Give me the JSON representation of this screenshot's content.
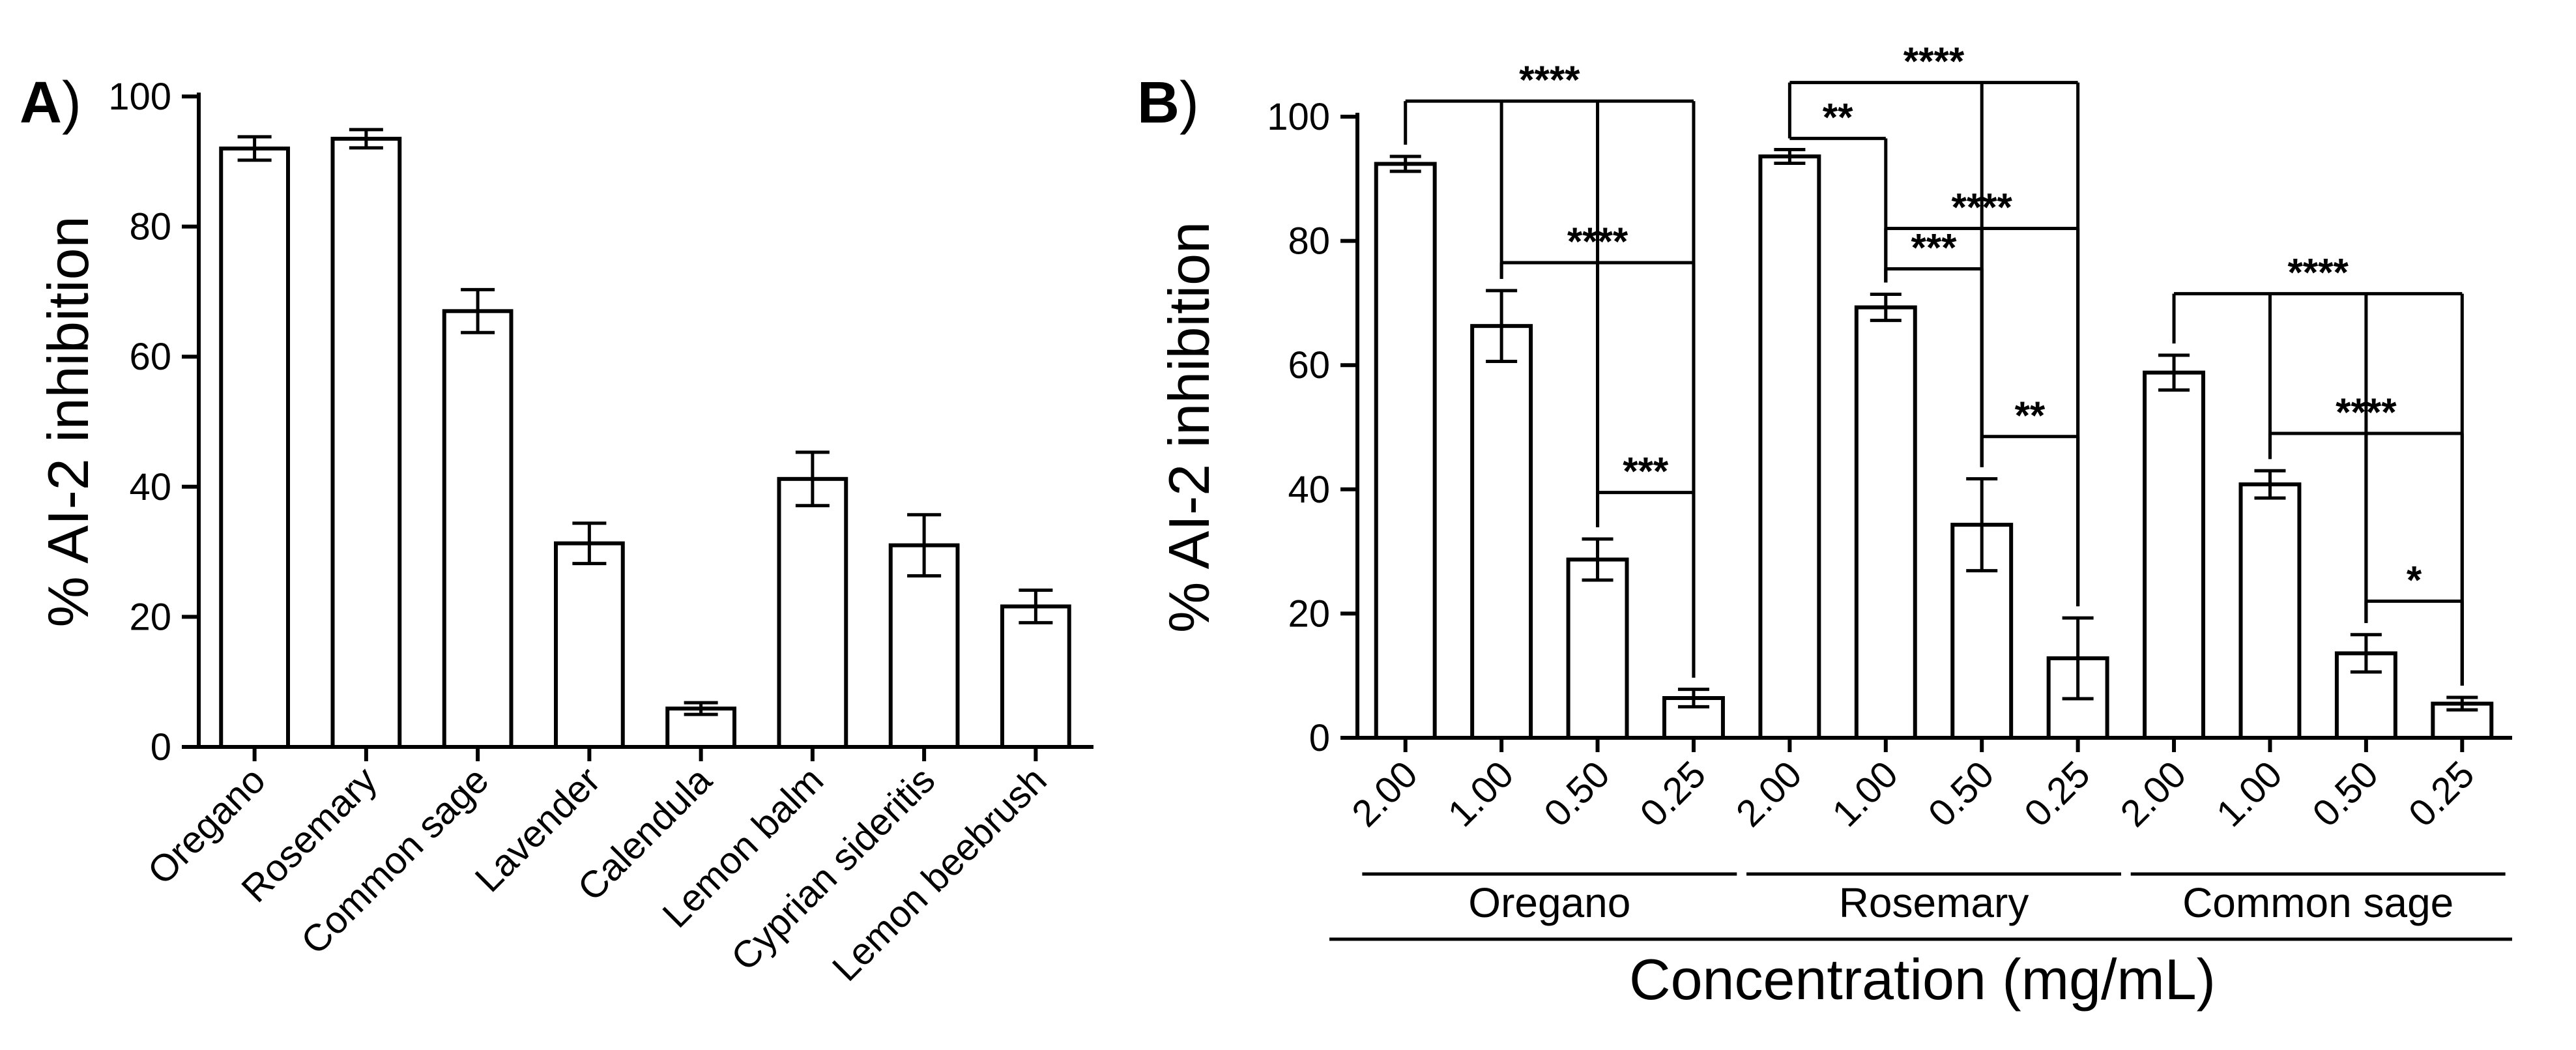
{
  "chart_data": [
    {
      "panel": "A",
      "type": "bar",
      "ylabel": "% AI-2 inhibition",
      "ylim": [
        0,
        100
      ],
      "yticks": [
        0,
        20,
        40,
        60,
        80,
        100
      ],
      "categories": [
        "Oregano",
        "Rosemary",
        "Common sage",
        "Lavender",
        "Calendula",
        "Lemon balm",
        "Cyprian sideritis",
        "Lemon beebrush"
      ],
      "values": [
        92,
        93.5,
        67,
        31.3,
        5.9,
        41.2,
        31,
        21.6
      ],
      "errors": [
        1.8,
        1.4,
        3.3,
        3.1,
        0.9,
        4.1,
        4.7,
        2.5
      ]
    },
    {
      "panel": "B",
      "type": "bar",
      "ylabel": "% AI-2 inhibition",
      "xlabel": "Concentration (mg/mL)",
      "ylim": [
        0,
        100
      ],
      "yticks": [
        0,
        20,
        40,
        60,
        80,
        100
      ],
      "groups": [
        {
          "name": "Oregano",
          "concentrations": [
            "2.00",
            "1.00",
            "0.50",
            "0.25"
          ],
          "values": [
            92.4,
            66.3,
            28.7,
            6.4
          ],
          "errors": [
            1.2,
            5.7,
            3.3,
            1.4
          ]
        },
        {
          "name": "Rosemary",
          "concentrations": [
            "2.00",
            "1.00",
            "0.50",
            "0.25"
          ],
          "values": [
            93.6,
            69.3,
            34.3,
            12.8
          ],
          "errors": [
            1.1,
            2.1,
            7.4,
            6.5
          ]
        },
        {
          "name": "Common sage",
          "concentrations": [
            "2.00",
            "1.00",
            "0.50",
            "0.25"
          ],
          "values": [
            58.8,
            40.8,
            13.6,
            5.5
          ],
          "errors": [
            2.8,
            2.2,
            3.0,
            1.0
          ]
        }
      ],
      "significance": [
        {
          "group": 0,
          "from": 0,
          "to": [
            1,
            2,
            3
          ],
          "label": "****",
          "y": 102.5
        },
        {
          "group": 0,
          "from": 1,
          "to": [
            2,
            3
          ],
          "label": "****",
          "y": 76.5
        },
        {
          "group": 0,
          "from": 2,
          "to": [
            3
          ],
          "label": "***",
          "y": 39.5
        },
        {
          "group": 1,
          "from": 0,
          "to": [
            1
          ],
          "label": "**",
          "y": 96.5
        },
        {
          "group": 1,
          "from": 0,
          "to": [
            2,
            3
          ],
          "label": "****",
          "y": 105.5
        },
        {
          "group": 1,
          "from": 1,
          "to": [
            2,
            3
          ],
          "label": "****",
          "y": 82
        },
        {
          "group": 1,
          "from": 1,
          "to": [
            2
          ],
          "label": "***",
          "y": 75.5
        },
        {
          "group": 1,
          "from": 2,
          "to": [
            3
          ],
          "label": "**",
          "y": 48.5
        },
        {
          "group": 2,
          "from": 0,
          "to": [
            1,
            2,
            3
          ],
          "label": "****",
          "y": 71.5
        },
        {
          "group": 2,
          "from": 1,
          "to": [
            2,
            3
          ],
          "label": "****",
          "y": 49
        },
        {
          "group": 2,
          "from": 2,
          "to": [
            3
          ],
          "label": "*",
          "y": 22
        }
      ]
    }
  ]
}
